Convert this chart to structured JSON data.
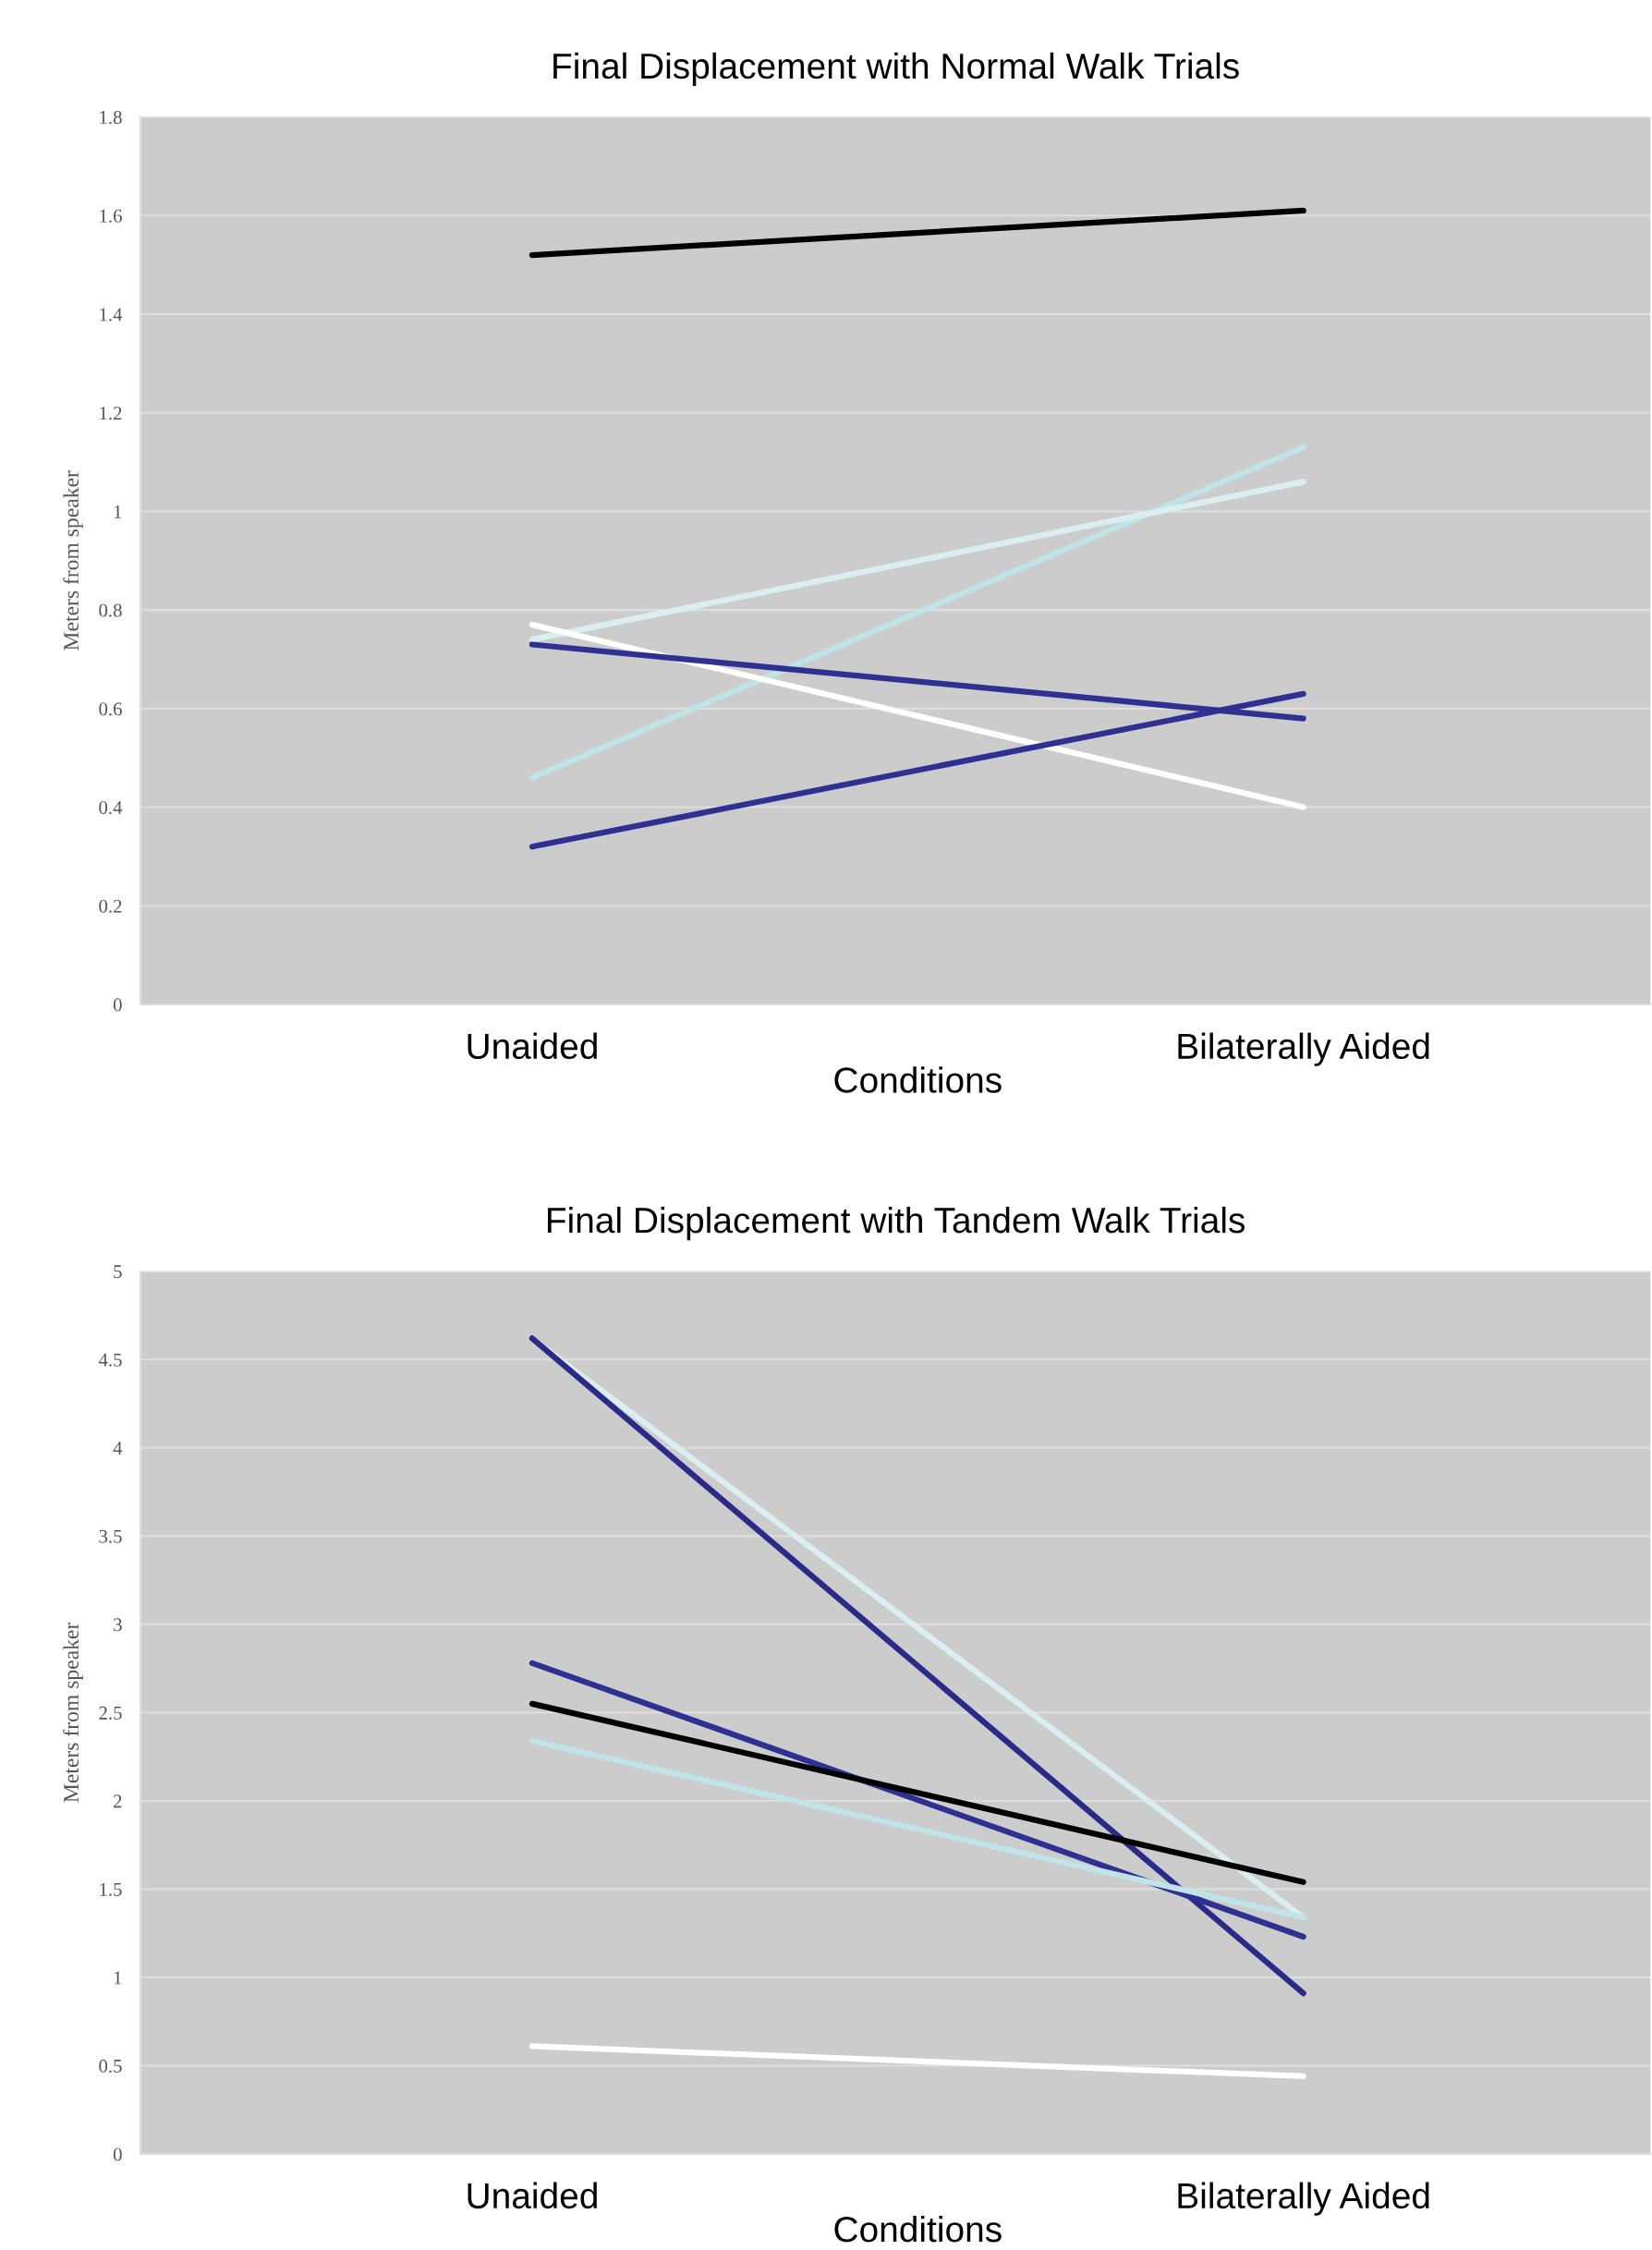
{
  "chart_data": [
    {
      "type": "line",
      "title": "Final Displacement with Normal Walk Trials",
      "xlabel": "Conditions",
      "ylabel": "Meters from speaker",
      "categories": [
        "Unaided",
        "Bilaterally Aided"
      ],
      "ylim": [
        0,
        1.8
      ],
      "yticks": [
        0,
        0.2,
        0.4,
        0.6,
        0.8,
        1,
        1.2,
        1.4,
        1.6,
        1.8
      ],
      "grid": "y",
      "marker": "none",
      "line_style": "solid",
      "series": [
        {
          "color": "#000000",
          "values": [
            1.52,
            1.61
          ]
        },
        {
          "color": "#bfe3e6",
          "values": [
            0.46,
            1.13
          ]
        },
        {
          "color": "#daeef0",
          "values": [
            0.74,
            1.06
          ]
        },
        {
          "color": "#ffffff",
          "values": [
            0.77,
            0.4
          ]
        },
        {
          "color": "#2e3192",
          "values": [
            0.73,
            0.58
          ]
        },
        {
          "color": "#2e3192",
          "values": [
            0.32,
            0.63
          ]
        }
      ]
    },
    {
      "type": "line",
      "title": "Final Displacement with Tandem Walk Trials",
      "xlabel": "Conditions",
      "ylabel": "Meters from speaker",
      "categories": [
        "Unaided",
        "Bilaterally Aided"
      ],
      "ylim": [
        0,
        5
      ],
      "yticks": [
        0,
        0.5,
        1,
        1.5,
        2,
        2.5,
        3,
        3.5,
        4,
        4.5,
        5
      ],
      "grid": "y",
      "marker": "none",
      "line_style": "solid",
      "series": [
        {
          "color": "#daeef0",
          "values": [
            4.62,
            1.34
          ]
        },
        {
          "color": "#2a2a88",
          "values": [
            4.62,
            0.91
          ]
        },
        {
          "color": "#2e3192",
          "values": [
            2.78,
            1.23
          ]
        },
        {
          "color": "#000000",
          "values": [
            2.55,
            1.54
          ]
        },
        {
          "color": "#bfe3e6",
          "values": [
            2.34,
            1.34
          ]
        },
        {
          "color": "#ffffff",
          "values": [
            0.61,
            0.44
          ]
        }
      ]
    }
  ]
}
